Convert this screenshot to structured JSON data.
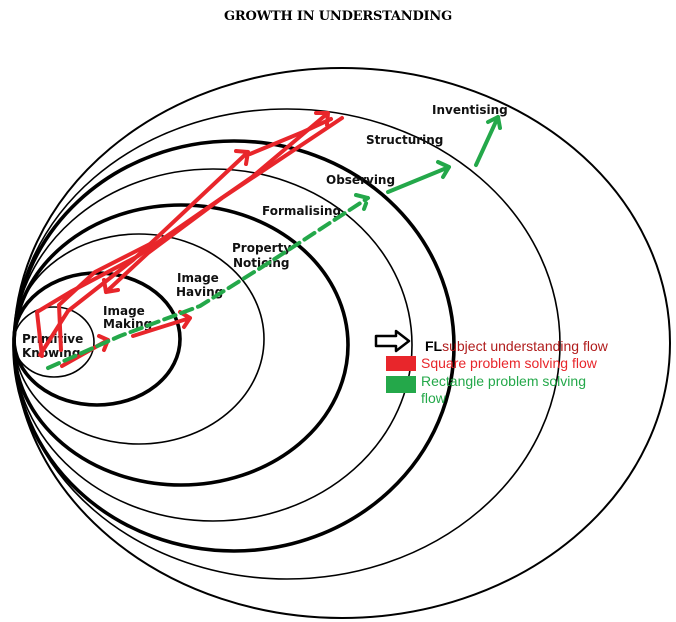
{
  "title": "GROWTH IN UNDERSTANDING",
  "levels": [
    "Primitive Knowing",
    "Image Making",
    "Image Having",
    "Property Noticing",
    "Formalising",
    "Observing",
    "Structuring",
    "Inventising"
  ],
  "legend": {
    "fl_prefix": "FL",
    "fl_label": "subject understanding flow",
    "square_label": "Square problem solving flow",
    "rectangle_label": "Rectangle problem solving flow"
  },
  "colors": {
    "square": "#e8262b",
    "rectangle": "#24a84a",
    "fl_label": "#b01c1c",
    "rings": "#000000"
  },
  "icons": {
    "fl": "outline-right-arrow-icon",
    "square": "red-square-icon",
    "rectangle": "green-square-icon"
  }
}
